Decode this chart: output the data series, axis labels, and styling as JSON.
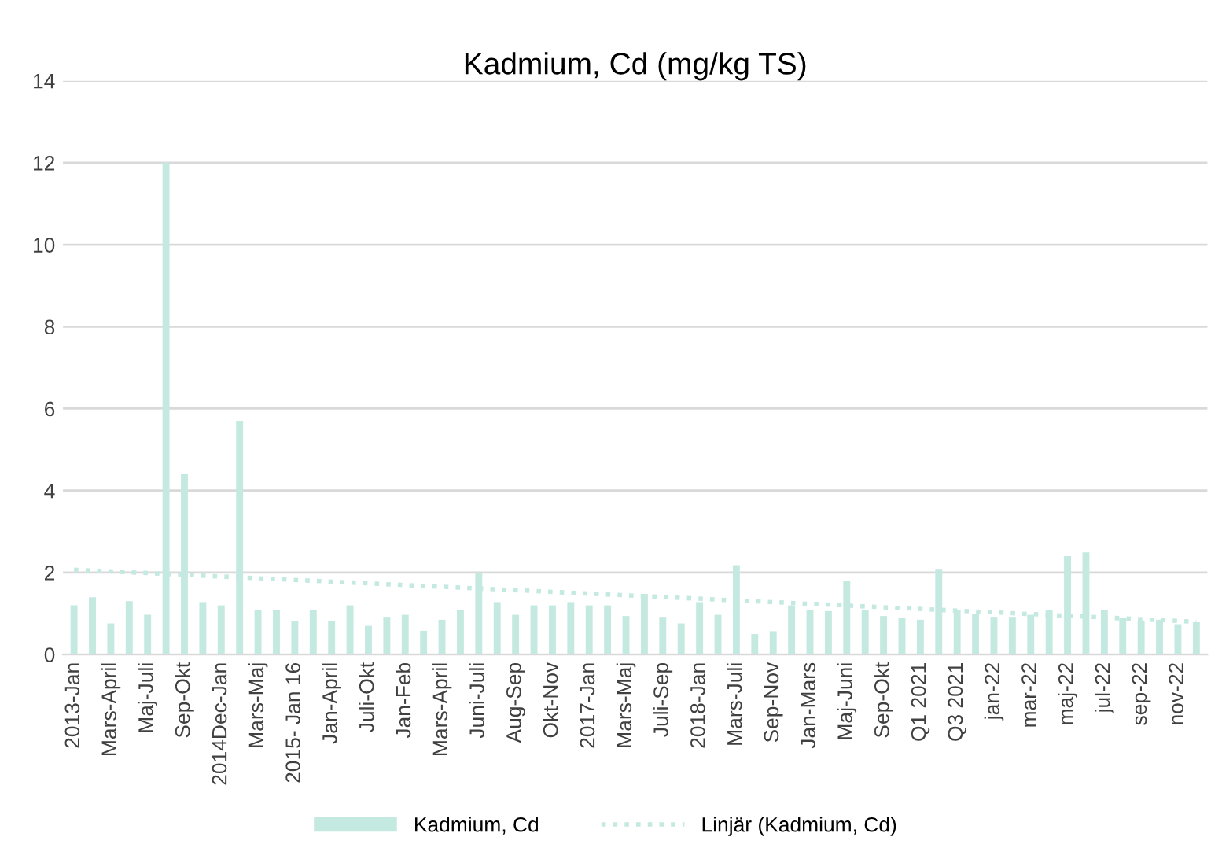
{
  "chart_data": {
    "type": "bar",
    "title": "Kadmium, Cd (mg/kg TS)",
    "categories": [
      "2013-Jan",
      null,
      "Mars-April",
      null,
      "Maj-Juli",
      null,
      "Sep-Okt",
      null,
      "2014Dec-Jan",
      null,
      "Mars-Maj",
      null,
      "2015- Jan 16",
      null,
      "Jan-April",
      null,
      "Juli-Okt",
      null,
      "Jan-Feb",
      null,
      "Mars-April",
      null,
      "Juni-Juli",
      null,
      "Aug-Sep",
      null,
      "Okt-Nov",
      null,
      "2017-Jan",
      null,
      "Mars-Maj",
      null,
      "Juli-Sep",
      null,
      "2018-Jan",
      null,
      "Mars-Juli",
      null,
      "Sep-Nov",
      null,
      "Jan-Mars",
      null,
      "Maj-Juni",
      null,
      "Sep-Okt",
      null,
      "Q1 2021",
      null,
      "Q3 2021",
      null,
      "jan-22",
      null,
      "mar-22",
      null,
      "maj-22",
      null,
      "jul-22",
      null,
      "sep-22",
      null,
      "nov-22",
      null
    ],
    "series": [
      {
        "name": "Kadmium, Cd",
        "color": "#c4e9e0",
        "values": [
          1.2,
          1.4,
          0.76,
          1.3,
          0.97,
          12,
          4.4,
          1.28,
          1.2,
          5.7,
          1.08,
          1.08,
          0.81,
          1.08,
          0.81,
          1.2,
          0.7,
          0.92,
          0.97,
          0.58,
          0.85,
          1.08,
          2.0,
          1.28,
          0.97,
          1.2,
          1.2,
          1.28,
          1.2,
          1.2,
          0.94,
          1.48,
          0.92,
          0.76,
          1.28,
          0.97,
          2.18,
          0.5,
          0.57,
          1.2,
          1.08,
          1.06,
          1.79,
          1.08,
          0.94,
          0.89,
          0.85,
          2.09,
          1.08,
          1.0,
          0.92,
          0.92,
          0.97,
          1.08,
          2.4,
          2.49,
          1.08,
          0.89,
          0.83,
          0.85,
          0.74,
          0.79
        ]
      },
      {
        "name": "Linjär (Kadmium, Cd)",
        "type": "line",
        "color": "#c4e9e0",
        "line_style": "dotted",
        "values": [
          2.07,
          null,
          null,
          null,
          null,
          null,
          null,
          null,
          null,
          null,
          null,
          null,
          null,
          null,
          null,
          null,
          null,
          null,
          null,
          null,
          null,
          null,
          null,
          null,
          null,
          null,
          null,
          null,
          null,
          null,
          null,
          null,
          null,
          null,
          null,
          null,
          null,
          null,
          null,
          null,
          null,
          null,
          null,
          null,
          null,
          null,
          null,
          null,
          null,
          null,
          null,
          null,
          null,
          null,
          null,
          null,
          null,
          null,
          null,
          null,
          null,
          0.8
        ]
      }
    ],
    "ylim": [
      0,
      14
    ],
    "yticks": [
      0,
      2,
      4,
      6,
      8,
      10,
      12,
      14
    ],
    "grid": "y",
    "legend": "bottom"
  }
}
